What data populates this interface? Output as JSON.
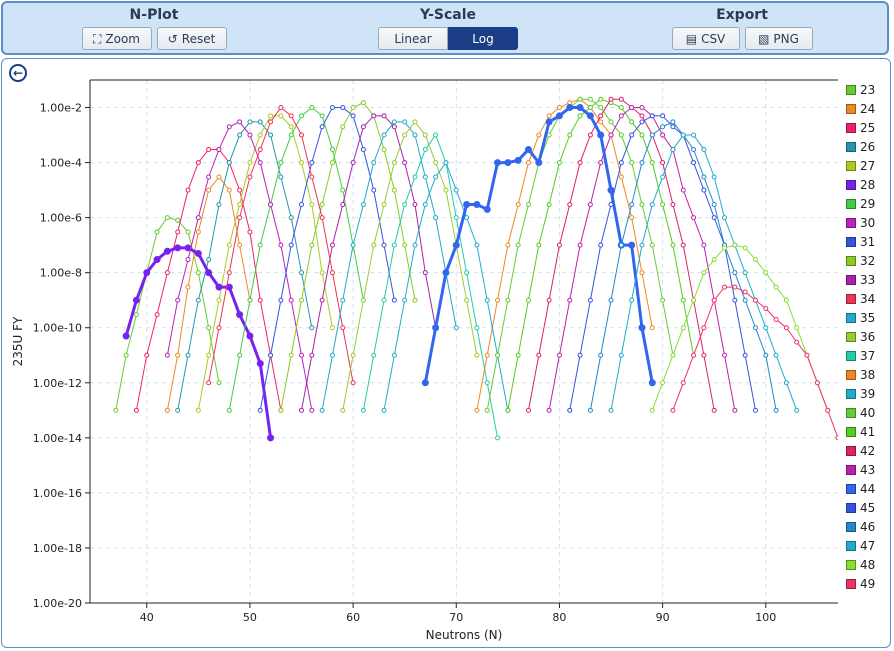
{
  "toolbar": {
    "nplot": {
      "title": "N-Plot",
      "zoom_label": "Zoom",
      "reset_label": "Reset"
    },
    "yscale": {
      "title": "Y-Scale",
      "linear_label": "Linear",
      "log_label": "Log",
      "selected": "Log"
    },
    "export": {
      "title": "Export",
      "csv_label": "CSV",
      "png_label": "PNG"
    }
  },
  "colors": {
    "23": "#66cc33",
    "24": "#ee8822",
    "25": "#ee2266",
    "26": "#2299aa",
    "27": "#aacc22",
    "28": "#7722ee",
    "29": "#44cc44",
    "30": "#bb22bb",
    "31": "#3355dd",
    "32": "#88cc22",
    "33": "#aa22aa",
    "34": "#ee3355",
    "35": "#22aacc",
    "36": "#99cc33",
    "37": "#22ccaa",
    "38": "#ee8822",
    "39": "#22aacc",
    "40": "#66cc33",
    "41": "#55cc22",
    "42": "#dd2266",
    "43": "#bb22aa",
    "44": "#3366ee",
    "45": "#3355dd",
    "46": "#2288cc",
    "47": "#22aacc",
    "48": "#88dd33",
    "49": "#ee3366"
  },
  "chart_data": {
    "type": "line",
    "xlabel": "Neutrons (N)",
    "ylabel": "235U FY",
    "yscale": "log",
    "xlim": [
      34.5,
      107
    ],
    "ylim": [
      1e-20,
      0.1
    ],
    "xticks": [
      40,
      50,
      60,
      70,
      80,
      90,
      100
    ],
    "yticks": [
      "1.00e-20",
      "1.00e-18",
      "1.00e-16",
      "1.00e-14",
      "1.00e-12",
      "1.00e-10",
      "1.00e-8",
      "1.00e-6",
      "1.00e-4",
      "1.00e-2"
    ],
    "grid": true,
    "legend": "right",
    "series": [
      {
        "name": "23",
        "x": [
          37,
          38,
          39,
          40,
          41,
          42,
          43,
          44,
          45,
          46,
          47
        ],
        "y": [
          1e-13,
          1e-11,
          3e-10,
          1e-08,
          3e-07,
          1e-06,
          8e-07,
          3e-07,
          1e-08,
          1e-10,
          1e-12
        ]
      },
      {
        "name": "24",
        "x": [
          42,
          43,
          44,
          45,
          46,
          47,
          48,
          49,
          50
        ],
        "y": [
          1e-13,
          1e-11,
          3e-09,
          3e-07,
          1e-05,
          3e-05,
          1e-05,
          1e-07,
          1e-09
        ]
      },
      {
        "name": "25",
        "x": [
          39,
          40,
          41,
          42,
          43,
          44,
          45,
          46,
          47,
          48,
          49,
          50,
          51,
          52,
          53
        ],
        "y": [
          1e-13,
          1e-11,
          3e-10,
          1e-08,
          3e-07,
          1e-05,
          0.0001,
          0.0003,
          0.0003,
          0.0001,
          1e-05,
          3e-07,
          1e-09,
          1e-11,
          1e-13
        ]
      },
      {
        "name": "26",
        "x": [
          43,
          44,
          45,
          46,
          47,
          48,
          49,
          50,
          51,
          52,
          53,
          54,
          55,
          56
        ],
        "y": [
          1e-13,
          1e-11,
          1e-09,
          3e-08,
          3e-06,
          0.0001,
          0.001,
          0.003,
          0.003,
          0.001,
          3e-05,
          1e-06,
          1e-08,
          1e-10
        ]
      },
      {
        "name": "27",
        "x": [
          45,
          46,
          47,
          48,
          49,
          50,
          51,
          52,
          53,
          54,
          55,
          56,
          57,
          58
        ],
        "y": [
          1e-13,
          1e-11,
          1e-09,
          1e-07,
          3e-06,
          0.0001,
          0.001,
          0.005,
          0.005,
          0.002,
          0.0001,
          3e-06,
          1e-08,
          1e-10
        ]
      },
      {
        "name": "28",
        "x": [
          38,
          39,
          40,
          41,
          42,
          43,
          44,
          45,
          46,
          47,
          48,
          49,
          50,
          51,
          52
        ],
        "y": [
          5e-11,
          1e-09,
          1e-08,
          3e-08,
          6e-08,
          8e-08,
          8e-08,
          5e-08,
          1e-08,
          3e-09,
          3e-09,
          3e-10,
          5e-11,
          5e-12,
          1e-14
        ]
      },
      {
        "name": "29",
        "x": [
          48,
          49,
          50,
          51,
          52,
          53,
          54,
          55,
          56,
          57,
          58,
          59,
          60,
          61
        ],
        "y": [
          1e-13,
          1e-11,
          1e-09,
          1e-07,
          3e-06,
          0.0001,
          0.001,
          0.005,
          0.01,
          0.005,
          0.0003,
          1e-05,
          1e-07,
          1e-09
        ]
      },
      {
        "name": "30",
        "x": [
          42,
          43,
          44,
          45,
          46,
          47,
          48,
          49,
          50,
          51,
          52,
          53,
          54,
          55,
          56
        ],
        "y": [
          1e-11,
          1e-09,
          3e-08,
          1e-06,
          3e-05,
          0.0003,
          0.002,
          0.003,
          0.001,
          0.0001,
          3e-06,
          1e-07,
          1e-09,
          1e-11,
          1e-13
        ]
      },
      {
        "name": "31",
        "x": [
          51,
          52,
          53,
          54,
          55,
          56,
          57,
          58,
          59,
          60,
          61,
          62,
          63,
          64
        ],
        "y": [
          1e-13,
          1e-11,
          1e-09,
          1e-07,
          3e-06,
          0.0001,
          0.002,
          0.01,
          0.01,
          0.005,
          0.0003,
          1e-05,
          1e-07,
          1e-09
        ]
      },
      {
        "name": "32",
        "x": [
          53,
          54,
          55,
          56,
          57,
          58,
          59,
          60,
          61,
          62,
          63,
          64,
          65,
          66
        ],
        "y": [
          1e-13,
          1e-11,
          1e-09,
          1e-07,
          3e-06,
          0.0001,
          0.002,
          0.01,
          0.015,
          0.005,
          0.0003,
          1e-05,
          1e-07,
          1e-09
        ]
      },
      {
        "name": "33",
        "x": [
          55,
          56,
          57,
          58,
          59,
          60,
          61,
          62,
          63,
          64,
          65,
          66,
          67,
          68
        ],
        "y": [
          1e-13,
          1e-11,
          1e-09,
          1e-07,
          3e-06,
          0.0001,
          0.002,
          0.005,
          0.005,
          0.002,
          0.0001,
          3e-06,
          1e-08,
          1e-10
        ]
      },
      {
        "name": "34",
        "x": [
          46,
          47,
          48,
          49,
          50,
          51,
          52,
          53,
          54,
          55,
          56,
          57,
          58,
          59,
          60
        ],
        "y": [
          1e-12,
          1e-10,
          1e-08,
          1e-06,
          3e-05,
          0.0003,
          0.003,
          0.01,
          0.005,
          0.001,
          3e-05,
          1e-06,
          1e-08,
          1e-10,
          1e-12
        ]
      },
      {
        "name": "35",
        "x": [
          57,
          58,
          59,
          60,
          61,
          62,
          63,
          64,
          65,
          66,
          67,
          68,
          69,
          70
        ],
        "y": [
          1e-13,
          1e-11,
          1e-09,
          1e-07,
          3e-06,
          0.0001,
          0.001,
          0.003,
          0.003,
          0.001,
          3e-05,
          1e-06,
          1e-08,
          1e-10
        ]
      },
      {
        "name": "36",
        "x": [
          59,
          60,
          61,
          62,
          63,
          64,
          65,
          66,
          67,
          68,
          69,
          70,
          71,
          72
        ],
        "y": [
          1e-13,
          1e-11,
          1e-09,
          1e-07,
          3e-06,
          0.0001,
          0.001,
          0.003,
          0.001,
          0.0001,
          1e-05,
          1e-07,
          1e-09,
          1e-11
        ]
      },
      {
        "name": "37",
        "x": [
          61,
          62,
          63,
          64,
          65,
          66,
          67,
          68,
          69,
          70,
          71,
          72,
          73,
          74
        ],
        "y": [
          1e-13,
          1e-11,
          1e-09,
          1e-07,
          3e-06,
          3e-05,
          0.0003,
          0.001,
          0.0001,
          1e-06,
          1e-08,
          1e-10,
          1e-12,
          1e-14
        ]
      },
      {
        "name": "38",
        "x": [
          72,
          73,
          74,
          75,
          76,
          77,
          78,
          79,
          80,
          81,
          82,
          83,
          84,
          85,
          86,
          87,
          88,
          89
        ],
        "y": [
          1e-13,
          1e-11,
          1e-09,
          1e-07,
          3e-06,
          0.0001,
          0.001,
          0.005,
          0.01,
          0.015,
          0.02,
          0.01,
          0.003,
          0.001,
          3e-05,
          1e-06,
          1e-08,
          1e-10
        ]
      },
      {
        "name": "39",
        "x": [
          63,
          64,
          65,
          66,
          67,
          68,
          69,
          70,
          71,
          72,
          73,
          74,
          75
        ],
        "y": [
          1e-13,
          1e-11,
          1e-09,
          1e-07,
          3e-06,
          3e-05,
          0.0001,
          1e-05,
          1e-06,
          1e-07,
          1e-09,
          1e-11,
          1e-13
        ]
      },
      {
        "name": "40",
        "x": [
          73,
          74,
          75,
          76,
          77,
          78,
          79,
          80,
          81,
          82,
          83,
          84,
          85,
          86,
          87,
          88,
          89,
          90,
          91
        ],
        "y": [
          1e-13,
          1e-11,
          1e-09,
          1e-07,
          3e-06,
          0.0001,
          0.001,
          0.005,
          0.01,
          0.02,
          0.02,
          0.01,
          0.003,
          0.001,
          0.0001,
          3e-06,
          1e-07,
          1e-09,
          1e-11
        ]
      },
      {
        "name": "41",
        "x": [
          75,
          76,
          77,
          78,
          79,
          80,
          81,
          82,
          83,
          84,
          85,
          86,
          87,
          88,
          89,
          90,
          91,
          92,
          93
        ],
        "y": [
          1e-13,
          1e-11,
          1e-09,
          1e-07,
          3e-06,
          0.0001,
          0.001,
          0.005,
          0.01,
          0.02,
          0.015,
          0.01,
          0.003,
          0.001,
          0.0001,
          3e-06,
          1e-07,
          1e-09,
          1e-11
        ]
      },
      {
        "name": "42",
        "x": [
          77,
          78,
          79,
          80,
          81,
          82,
          83,
          84,
          85,
          86,
          87,
          88,
          89,
          90,
          91,
          92,
          93,
          94,
          95
        ],
        "y": [
          1e-13,
          1e-11,
          1e-09,
          1e-07,
          3e-06,
          0.0001,
          0.001,
          0.005,
          0.02,
          0.02,
          0.01,
          0.005,
          0.001,
          0.0001,
          3e-06,
          1e-07,
          1e-09,
          1e-11,
          1e-13
        ]
      },
      {
        "name": "43",
        "x": [
          79,
          80,
          81,
          82,
          83,
          84,
          85,
          86,
          87,
          88,
          89,
          90,
          91,
          92,
          93,
          94,
          95,
          96,
          97
        ],
        "y": [
          1e-13,
          1e-11,
          1e-09,
          1e-07,
          3e-06,
          0.0001,
          0.001,
          0.005,
          0.01,
          0.01,
          0.005,
          0.001,
          0.0003,
          1e-05,
          1e-06,
          1e-07,
          1e-09,
          1e-11,
          1e-13
        ]
      },
      {
        "name": "44",
        "x": [
          67,
          68,
          69,
          70,
          71,
          72,
          73,
          74,
          75,
          76,
          77,
          78,
          79,
          80,
          81,
          82,
          83,
          84,
          85,
          86,
          87,
          88,
          89
        ],
        "y": [
          1e-12,
          1e-10,
          1e-08,
          1e-07,
          3e-06,
          3e-06,
          2e-06,
          0.0001,
          0.0001,
          0.00012,
          0.0003,
          0.0001,
          0.003,
          0.005,
          0.01,
          0.01,
          0.005,
          0.001,
          1e-05,
          1e-07,
          1e-07,
          1e-10,
          1e-12
        ]
      },
      {
        "name": "45",
        "x": [
          81,
          82,
          83,
          84,
          85,
          86,
          87,
          88,
          89,
          90,
          91,
          92,
          93,
          94,
          95,
          96,
          97,
          98,
          99
        ],
        "y": [
          1e-13,
          1e-11,
          1e-09,
          1e-07,
          3e-06,
          0.0001,
          0.001,
          0.003,
          0.005,
          0.005,
          0.002,
          0.001,
          0.0001,
          1e-05,
          1e-06,
          1e-07,
          1e-09,
          1e-11,
          1e-13
        ]
      },
      {
        "name": "46",
        "x": [
          83,
          84,
          85,
          86,
          87,
          88,
          89,
          90,
          91,
          92,
          93,
          94,
          95,
          96,
          97,
          98,
          99,
          100,
          101
        ],
        "y": [
          1e-13,
          1e-11,
          1e-09,
          1e-07,
          3e-06,
          0.0001,
          0.001,
          0.002,
          0.003,
          0.001,
          0.0003,
          3e-05,
          3e-06,
          1e-07,
          1e-08,
          1e-09,
          1e-10,
          1e-11,
          1e-13
        ]
      },
      {
        "name": "47",
        "x": [
          85,
          86,
          87,
          88,
          89,
          90,
          91,
          92,
          93,
          94,
          95,
          96,
          97,
          98,
          99,
          100,
          101,
          102,
          103
        ],
        "y": [
          1e-13,
          1e-11,
          1e-09,
          1e-07,
          3e-06,
          3e-05,
          0.0003,
          0.001,
          0.001,
          0.0003,
          3e-05,
          1e-06,
          1e-07,
          1e-08,
          1e-09,
          1e-10,
          1e-11,
          1e-12,
          1e-13
        ]
      },
      {
        "name": "48",
        "x": [
          89,
          90,
          91,
          92,
          93,
          94,
          95,
          96,
          97,
          98,
          99,
          100,
          101,
          102,
          103,
          104,
          105,
          106
        ],
        "y": [
          1e-13,
          1e-12,
          1e-11,
          1e-10,
          1e-09,
          1e-08,
          3e-08,
          8e-08,
          1e-07,
          8e-08,
          3e-08,
          1e-08,
          3e-09,
          1e-09,
          1e-10,
          1e-11,
          1e-12,
          1e-13
        ]
      },
      {
        "name": "49",
        "x": [
          91,
          92,
          93,
          94,
          95,
          96,
          97,
          98,
          99,
          100,
          101,
          102,
          103,
          104,
          105,
          106,
          107
        ],
        "y": [
          1e-13,
          1e-12,
          1e-11,
          1e-10,
          1e-09,
          3e-09,
          3e-09,
          2e-09,
          1e-09,
          5e-10,
          2e-10,
          1e-10,
          3e-11,
          1e-11,
          1e-12,
          1e-13,
          1e-14
        ]
      }
    ]
  }
}
